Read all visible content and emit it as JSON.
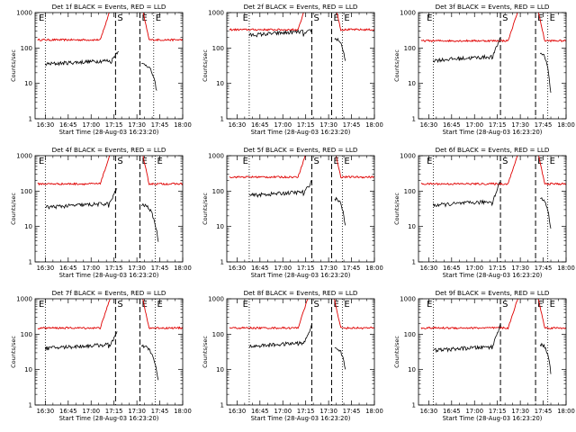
{
  "chart_data": {
    "type": "line",
    "figure_count": 9,
    "yscale": "log",
    "ylim": [
      1,
      1000
    ],
    "ylabel": "Counts/sec",
    "xlabel": "Start Time (28-Aug-03 16:23:20)",
    "x_tick_labels": [
      "16:30",
      "16:45",
      "17:00",
      "17:15",
      "17:30",
      "17:45",
      "18:00"
    ],
    "x_tick_minutes": [
      30,
      45,
      60,
      75,
      90,
      105,
      120
    ],
    "xlim_minutes": [
      23.3,
      120
    ],
    "y_tick_labels": [
      "1",
      "10",
      "100",
      "1000"
    ],
    "series_legend": {
      "black": "Events",
      "red": "LLD"
    },
    "colors": {
      "events": "#000000",
      "lld": "#e00000"
    },
    "panels": [
      {
        "title": "Det 1f BLACK = Events, RED = LLD",
        "markers": {
          "left_E": 30,
          "S_start": 76,
          "S_end": 92,
          "right_E": 101
        },
        "red_level": 170,
        "red_peak_end": 76,
        "red_start_after": 92,
        "black_start": 30,
        "black_level": 35,
        "black_rise_to": 90,
        "black_end_gap": 78,
        "black_resume": 93,
        "black_resume_level": 35,
        "black_final": 6,
        "black_end": 103
      },
      {
        "title": "Det 2f BLACK = Events, RED = LLD",
        "markers": {
          "left_E": 38,
          "S_start": 79,
          "S_end": 92,
          "right_E": 99
        },
        "red_level": 330,
        "red_peak_end": 80,
        "red_start_after": 92,
        "black_start": 38,
        "black_level": 230,
        "black_rise_to": 330,
        "black_end_gap": 79,
        "black_resume": 94,
        "black_resume_level": 180,
        "black_final": 40,
        "black_end": 101
      },
      {
        "title": "Det 3f BLACK = Events, RED = LLD",
        "markers": {
          "left_E": 33,
          "S_start": 77,
          "S_end": 100,
          "right_E": 108
        },
        "red_level": 160,
        "red_peak_end": 92,
        "red_start_after": 100,
        "black_start": 33,
        "black_level": 45,
        "black_rise_to": 200,
        "black_end_gap": 77,
        "black_resume": 103,
        "black_resume_level": 70,
        "black_final": 5,
        "black_end": 110
      },
      {
        "title": "Det 4f BLACK = Events, RED = LLD",
        "markers": {
          "left_E": 30,
          "S_start": 76,
          "S_end": 92,
          "right_E": 102
        },
        "red_level": 160,
        "red_peak_end": 76,
        "red_start_after": 92,
        "black_start": 30,
        "black_level": 35,
        "black_rise_to": 120,
        "black_end_gap": 77,
        "black_resume": 93,
        "black_resume_level": 40,
        "black_final": 4,
        "black_end": 104
      },
      {
        "title": "Det 5f BLACK = Events, RED = LLD",
        "markers": {
          "left_E": 38,
          "S_start": 79,
          "S_end": 92,
          "right_E": 99
        },
        "red_level": 250,
        "red_peak_end": 80,
        "red_start_after": 92,
        "black_start": 38,
        "black_level": 75,
        "black_rise_to": 200,
        "black_end_gap": 79,
        "black_resume": 94,
        "black_resume_level": 60,
        "black_final": 10,
        "black_end": 101
      },
      {
        "title": "Det 6f BLACK = Events, RED = LLD",
        "markers": {
          "left_E": 33,
          "S_start": 77,
          "S_end": 100,
          "right_E": 108
        },
        "red_level": 160,
        "red_peak_end": 92,
        "red_start_after": 100,
        "black_start": 33,
        "black_level": 40,
        "black_rise_to": 200,
        "black_end_gap": 77,
        "black_resume": 103,
        "black_resume_level": 60,
        "black_final": 8,
        "black_end": 110
      },
      {
        "title": "Det 7f BLACK = Events, RED = LLD",
        "markers": {
          "left_E": 30,
          "S_start": 76,
          "S_end": 92,
          "right_E": 102
        },
        "red_level": 150,
        "red_peak_end": 76,
        "red_start_after": 92,
        "black_start": 30,
        "black_level": 40,
        "black_rise_to": 110,
        "black_end_gap": 77,
        "black_resume": 93,
        "black_resume_level": 45,
        "black_final": 5,
        "black_end": 104
      },
      {
        "title": "Det 8f BLACK = Events, RED = LLD",
        "markers": {
          "left_E": 38,
          "S_start": 79,
          "S_end": 92,
          "right_E": 99
        },
        "red_level": 150,
        "red_peak_end": 80,
        "red_start_after": 92,
        "black_start": 38,
        "black_level": 45,
        "black_rise_to": 180,
        "black_end_gap": 79,
        "black_resume": 94,
        "black_resume_level": 40,
        "black_final": 10,
        "black_end": 101
      },
      {
        "title": "Det 9f BLACK = Events, RED = LLD",
        "markers": {
          "left_E": 33,
          "S_start": 77,
          "S_end": 100,
          "right_E": 108
        },
        "red_level": 150,
        "red_peak_end": 92,
        "red_start_after": 100,
        "black_start": 33,
        "black_level": 35,
        "black_rise_to": 200,
        "black_end_gap": 77,
        "black_resume": 103,
        "black_resume_level": 50,
        "black_final": 8,
        "black_end": 110
      }
    ]
  }
}
